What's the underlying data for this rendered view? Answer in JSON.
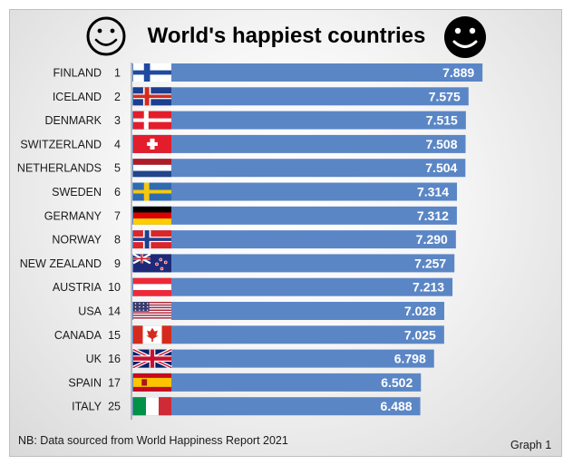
{
  "chart_data": {
    "type": "bar",
    "orientation": "horizontal",
    "title": "World's happiest countries",
    "categories": [
      "FINLAND",
      "ICELAND",
      "DENMARK",
      "SWITZERLAND",
      "NETHERLANDS",
      "SWEDEN",
      "GERMANY",
      "NORWAY",
      "NEW ZEALAND",
      "AUSTRIA",
      "USA",
      "CANADA",
      "UK",
      "SPAIN",
      "ITALY"
    ],
    "ranks": [
      "1",
      "2",
      "3",
      "4",
      "5",
      "6",
      "7",
      "8",
      "9",
      "10",
      "14",
      "15",
      "16",
      "17",
      "25"
    ],
    "values": [
      7.889,
      7.575,
      7.515,
      7.508,
      7.504,
      7.314,
      7.312,
      7.29,
      7.257,
      7.213,
      7.028,
      7.025,
      6.798,
      6.502,
      6.488
    ],
    "value_labels": [
      "7.889",
      "7.575",
      "7.515",
      "7.508",
      "7.504",
      "7.314",
      "7.312",
      "7.290",
      "7.257",
      "7.213",
      "7.028",
      "7.025",
      "6.798",
      "6.502",
      "6.488"
    ],
    "flags": [
      "finland-flag",
      "iceland-flag",
      "denmark-flag",
      "switzerland-flag",
      "netherlands-flag",
      "sweden-flag",
      "germany-flag",
      "norway-flag",
      "new-zealand-flag",
      "austria-flag",
      "usa-flag",
      "canada-flag",
      "uk-flag",
      "spain-flag",
      "italy-flag"
    ],
    "xlim": [
      0,
      8.6
    ],
    "grid": false,
    "legend": "none",
    "bar_color": "#5b86c6",
    "value_label_color": "#ffffff"
  },
  "decor": {
    "left_icon": "smiley-outline-icon",
    "right_icon": "smiley-filled-icon"
  },
  "footer": {
    "note": "NB: Data sourced from World Happiness Report 2021",
    "graph_label": "Graph 1"
  }
}
